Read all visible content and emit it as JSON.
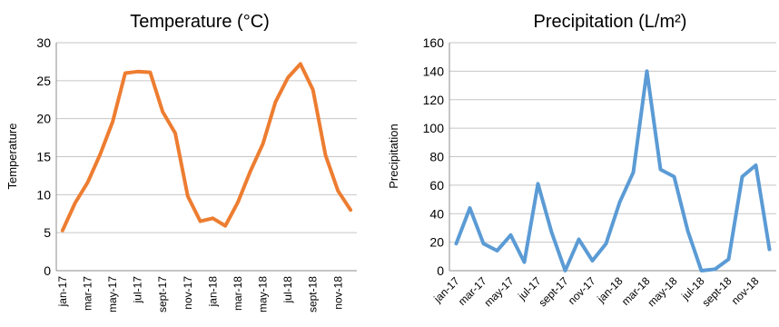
{
  "chart_data": [
    {
      "type": "line",
      "title": "Temperature (°C)",
      "xlabel": "",
      "ylabel": "Temperature",
      "ylim": [
        0,
        30
      ],
      "yticks": [
        0,
        5,
        10,
        15,
        20,
        25,
        30
      ],
      "grid": true,
      "color": "#ED7D31",
      "categories": [
        "jan-17",
        "feb-17",
        "mar-17",
        "apr-17",
        "may-17",
        "jun-17",
        "jul-17",
        "aug-17",
        "sept-17",
        "oct-17",
        "nov-17",
        "dec-17",
        "jan-18",
        "feb-18",
        "mar-18",
        "apr-18",
        "may-18",
        "jun-18",
        "jul-18",
        "aug-18",
        "sept-18",
        "oct-18",
        "nov-18",
        "dec-18"
      ],
      "tick_labels": [
        "jan-17",
        "mar-17",
        "may-17",
        "jul-17",
        "sept-17",
        "nov-17",
        "jan-18",
        "mar-18",
        "may-18",
        "jul-18",
        "sept-18",
        "nov-18"
      ],
      "values": [
        5.3,
        8.9,
        11.6,
        15.3,
        19.6,
        26.0,
        26.2,
        26.1,
        20.9,
        18.1,
        9.8,
        6.5,
        6.9,
        5.9,
        9.0,
        13.1,
        16.7,
        22.2,
        25.4,
        27.2,
        23.8,
        15.2,
        10.5,
        8.0
      ]
    },
    {
      "type": "line",
      "title": "Precipitation (L/m²)",
      "xlabel": "",
      "ylabel": "Precipitation",
      "ylim": [
        0,
        160
      ],
      "yticks": [
        0,
        20,
        40,
        60,
        80,
        100,
        120,
        140,
        160
      ],
      "grid": true,
      "color": "#5B9BD5",
      "categories": [
        "jan-17",
        "feb-17",
        "mar-17",
        "apr-17",
        "may-17",
        "jun-17",
        "jul-17",
        "aug-17",
        "sept-17",
        "oct-17",
        "nov-17",
        "dec-17",
        "jan-18",
        "feb-18",
        "mar-18",
        "apr-18",
        "may-18",
        "jun-18",
        "jul-18",
        "aug-18",
        "sept-18",
        "oct-18",
        "nov-18",
        "dec-18"
      ],
      "tick_labels": [
        "jan-17",
        "mar-17",
        "may-17",
        "jul-17",
        "sept-17",
        "nov-17",
        "jan-18",
        "mar-18",
        "may-18",
        "jul-18",
        "sept-18",
        "nov-18"
      ],
      "values": [
        19,
        44,
        19,
        14,
        25,
        6,
        61,
        27,
        0,
        22,
        7,
        19,
        48,
        69,
        140,
        71,
        66,
        28,
        0,
        1,
        8,
        66,
        74,
        15
      ]
    }
  ]
}
